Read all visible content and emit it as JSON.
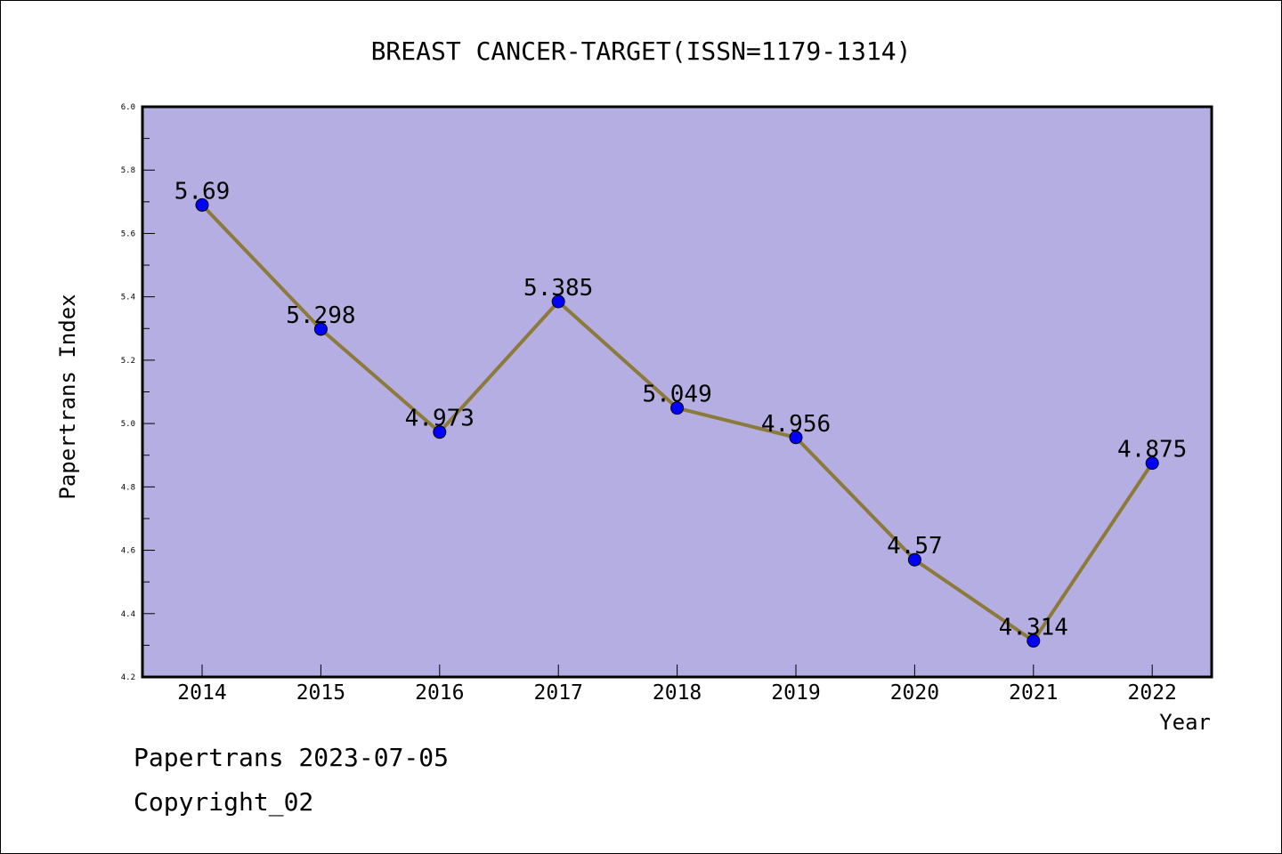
{
  "chart_data": {
    "type": "line",
    "title": "BREAST CANCER-TARGET(ISSN=1179-1314)",
    "xlabel": "Year",
    "ylabel": "Papertrans Index",
    "categories": [
      "2014",
      "2015",
      "2016",
      "2017",
      "2018",
      "2019",
      "2020",
      "2021",
      "2022"
    ],
    "values": [
      5.69,
      5.298,
      4.973,
      5.385,
      5.049,
      4.956,
      4.57,
      4.314,
      4.875
    ],
    "value_labels": [
      "5.69",
      "5.298",
      "4.973",
      "5.385",
      "5.049",
      "4.956",
      "4.57",
      "4.314",
      "4.875"
    ],
    "ylim": [
      4.2,
      6.0
    ],
    "yticks": [
      "4.2",
      "4.4",
      "4.6",
      "4.8",
      "5.0",
      "5.2",
      "5.4",
      "5.6",
      "5.8",
      "6.0"
    ],
    "grid": false,
    "colors": {
      "plot_background": "#b5aee2",
      "line": "#8b7a3a",
      "marker": "#0000ff"
    }
  },
  "footer": {
    "line1": "Papertrans 2023-07-05",
    "line2": "Copyright_02"
  }
}
